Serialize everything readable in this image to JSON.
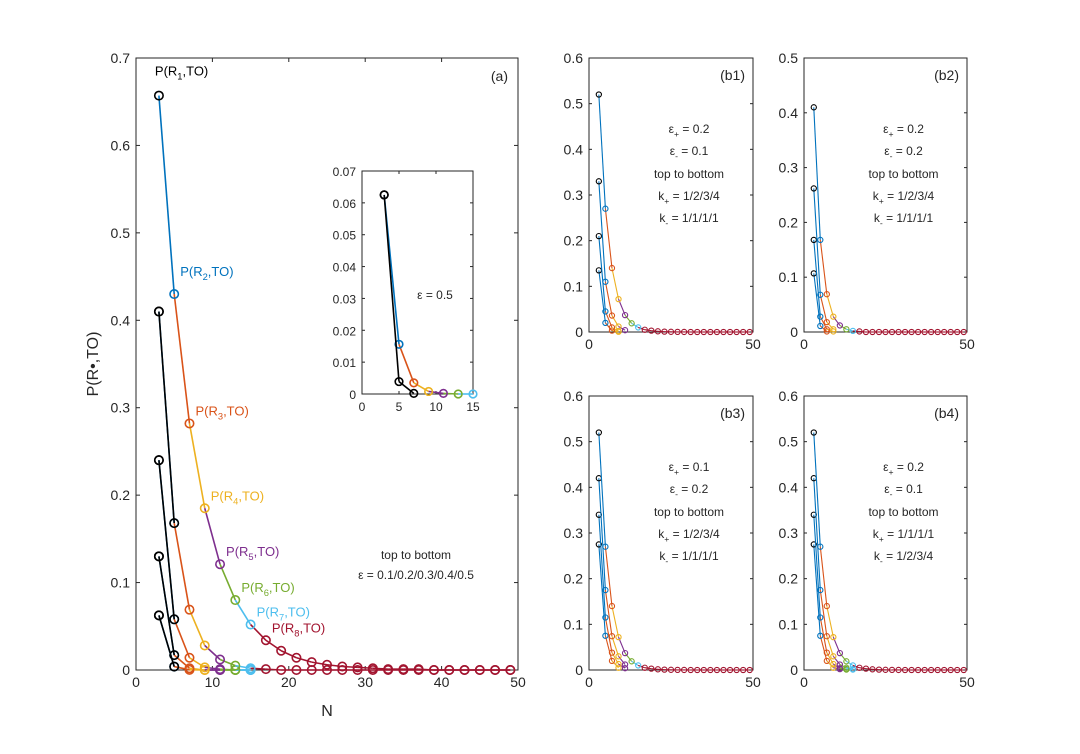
{
  "chart_data": [
    {
      "id": "a",
      "type": "line",
      "panel_label": "(a)",
      "xlabel": "N",
      "ylabel": "P(R•,TO)",
      "xlim": [
        0,
        50
      ],
      "ylim": [
        0,
        0.7
      ],
      "xticks": [
        0,
        10,
        20,
        30,
        40,
        50
      ],
      "yticks": [
        0,
        0.1,
        0.2,
        0.3,
        0.4,
        0.5,
        0.6,
        0.7
      ],
      "xtick_labels": [
        "0",
        "10",
        "20",
        "30",
        "40",
        "50"
      ],
      "ytick_labels": [
        "0",
        "0.1",
        "0.2",
        "0.3",
        "0.4",
        "0.5",
        "0.6",
        "0.7"
      ],
      "legend_lines": [
        "top to bottom",
        "ε = 0.1/0.2/0.3/0.4/0.5"
      ],
      "colors": [
        "#000000",
        "#0072BD",
        "#D95319",
        "#EDB120",
        "#7E2F8E",
        "#77AC30",
        "#4DBEEE",
        "#A2142F"
      ],
      "series": [
        {
          "name": "ε = 0.1",
          "x": [
            3,
            5,
            7,
            9,
            11,
            13,
            15,
            17,
            19,
            21,
            23,
            25,
            27,
            29,
            31,
            33,
            35,
            37,
            39,
            41,
            43,
            45,
            47,
            49
          ],
          "y": [
            0.657,
            0.43,
            0.282,
            0.185,
            0.121,
            0.08,
            0.052,
            0.034,
            0.022,
            0.014,
            0.009,
            0.006,
            0.004,
            0.003,
            0.002,
            0.001,
            0.001,
            0.001,
            0.0,
            0.0,
            0.0,
            0.0,
            0.0,
            0.0
          ]
        },
        {
          "name": "ε = 0.2",
          "x": [
            3,
            5,
            7,
            9,
            11,
            13,
            15,
            17,
            19,
            21,
            23,
            25,
            27,
            29,
            31,
            33,
            35,
            37,
            39,
            41,
            43,
            45,
            47,
            49
          ],
          "y": [
            0.41,
            0.168,
            0.069,
            0.028,
            0.012,
            0.005,
            0.002,
            0.001,
            0.0,
            0.0,
            0.0,
            0.0,
            0.0,
            0.0,
            0.0,
            0.0,
            0.0,
            0.0,
            0.0,
            0.0,
            0.0,
            0.0,
            0.0,
            0.0
          ]
        },
        {
          "name": "ε = 0.3",
          "x": [
            3,
            5,
            7,
            9,
            11,
            13,
            15
          ],
          "y": [
            0.24,
            0.058,
            0.014,
            0.003,
            0.001,
            0.0,
            0.0
          ]
        },
        {
          "name": "ε = 0.4",
          "x": [
            3,
            5,
            7,
            9,
            11,
            13,
            15
          ],
          "y": [
            0.13,
            0.017,
            0.002,
            0.0,
            0.0,
            0.0,
            0.0
          ]
        },
        {
          "name": "ε = 0.5",
          "x": [
            3,
            5,
            7,
            9,
            11,
            13,
            15
          ],
          "y": [
            0.0625,
            0.0039,
            0.0002,
            0.0,
            0.0,
            0.0,
            0.0
          ]
        }
      ],
      "point_labels": [
        {
          "main": "P(R",
          "sub": "1",
          "tail": ",TO)",
          "color_index": 0
        },
        {
          "main": "P(R",
          "sub": "2",
          "tail": ",TO)",
          "color_index": 1
        },
        {
          "main": "P(R",
          "sub": "3",
          "tail": ",TO)",
          "color_index": 2
        },
        {
          "main": "P(R",
          "sub": "4",
          "tail": ",TO)",
          "color_index": 3
        },
        {
          "main": "P(R",
          "sub": "5",
          "tail": ",TO)",
          "color_index": 4
        },
        {
          "main": "P(R",
          "sub": "6",
          "tail": ",TO)",
          "color_index": 5
        },
        {
          "main": "P(R",
          "sub": "7",
          "tail": ",TO)",
          "color_index": 6
        },
        {
          "main": "P(R",
          "sub": "8",
          "tail": ",TO)",
          "color_index": 7
        }
      ]
    },
    {
      "id": "inset",
      "type": "line",
      "xlim": [
        0,
        15
      ],
      "ylim": [
        0,
        0.07
      ],
      "xticks": [
        0,
        5,
        10,
        15
      ],
      "yticks": [
        0,
        0.01,
        0.02,
        0.03,
        0.04,
        0.05,
        0.06,
        0.07
      ],
      "xtick_labels": [
        "0",
        "5",
        "10",
        "15"
      ],
      "ytick_labels": [
        "0",
        "0.01",
        "0.02",
        "0.03",
        "0.04",
        "0.05",
        "0.06",
        "0.07"
      ],
      "annotation": "ε = 0.5",
      "series": [
        {
          "name": "colored",
          "x": [
            3,
            5,
            7,
            9,
            11,
            13,
            15
          ],
          "y": [
            0.0625,
            0.0156,
            0.0035,
            0.0008,
            0.0002,
            0.0,
            0.0
          ]
        },
        {
          "name": "black",
          "x": [
            3,
            5,
            7,
            9,
            11,
            13,
            15
          ],
          "y": [
            0.0625,
            0.0039,
            0.0002,
            0.0,
            0.0,
            0.0,
            0.0
          ]
        }
      ]
    },
    {
      "id": "b1",
      "type": "line",
      "panel_label": "(b1)",
      "xlim": [
        0,
        50
      ],
      "ylim": [
        0,
        0.6
      ],
      "xticks": [
        0,
        50
      ],
      "yticks": [
        0,
        0.1,
        0.2,
        0.3,
        0.4,
        0.5,
        0.6
      ],
      "xtick_labels": [
        "0",
        "50"
      ],
      "ytick_labels": [
        "0",
        "0.1",
        "0.2",
        "0.3",
        "0.4",
        "0.5",
        "0.6"
      ],
      "annotation_lines": [
        {
          "main": "ε",
          "sub": "+",
          "tail": " = 0.2"
        },
        {
          "main": "ε",
          "sub": "-",
          "tail": " = 0.1"
        },
        {
          "main": "top to bottom",
          "sub": "",
          "tail": ""
        },
        {
          "main": "k",
          "sub": "+",
          "tail": " = 1/2/3/4"
        },
        {
          "main": "k",
          "sub": "-",
          "tail": " = 1/1/1/1"
        }
      ],
      "series": [
        {
          "name": "k+=1",
          "x": [
            3,
            5,
            7,
            9,
            11,
            13,
            15,
            17,
            19,
            21,
            23,
            25,
            27,
            29,
            31,
            33,
            35,
            37,
            39,
            41,
            43,
            45,
            47,
            49
          ],
          "y": [
            0.52,
            0.27,
            0.14,
            0.072,
            0.037,
            0.019,
            0.01,
            0.005,
            0.003,
            0.0015,
            0.0008,
            0.0004,
            0.0002,
            0.0001,
            0,
            0,
            0,
            0,
            0,
            0,
            0,
            0,
            0,
            0
          ]
        },
        {
          "name": "k+=2",
          "x": [
            3,
            5,
            7,
            9,
            11
          ],
          "y": [
            0.33,
            0.11,
            0.036,
            0.012,
            0.004
          ]
        },
        {
          "name": "k+=3",
          "x": [
            3,
            5,
            7,
            9
          ],
          "y": [
            0.21,
            0.045,
            0.01,
            0.002
          ]
        },
        {
          "name": "k+=4",
          "x": [
            3,
            5,
            7,
            9
          ],
          "y": [
            0.135,
            0.02,
            0.003,
            0.0005
          ]
        }
      ]
    },
    {
      "id": "b2",
      "type": "line",
      "panel_label": "(b2)",
      "xlim": [
        0,
        50
      ],
      "ylim": [
        0,
        0.5
      ],
      "xticks": [
        0,
        50
      ],
      "yticks": [
        0,
        0.1,
        0.2,
        0.3,
        0.4,
        0.5
      ],
      "xtick_labels": [
        "0",
        "50"
      ],
      "ytick_labels": [
        "0",
        "0.1",
        "0.2",
        "0.3",
        "0.4",
        "0.5"
      ],
      "annotation_lines": [
        {
          "main": "ε",
          "sub": "+",
          "tail": " = 0.2"
        },
        {
          "main": "ε",
          "sub": "-",
          "tail": " = 0.2"
        },
        {
          "main": "top to bottom",
          "sub": "",
          "tail": ""
        },
        {
          "main": "k",
          "sub": "+",
          "tail": " = 1/2/3/4"
        },
        {
          "main": "k",
          "sub": "-",
          "tail": " = 1/1/1/1"
        }
      ],
      "series": [
        {
          "name": "k+=1",
          "x": [
            3,
            5,
            7,
            9,
            11,
            13,
            15,
            17,
            19,
            21,
            23,
            25,
            27,
            29,
            31,
            33,
            35,
            37,
            39,
            41,
            43,
            45,
            47,
            49
          ],
          "y": [
            0.41,
            0.168,
            0.069,
            0.028,
            0.012,
            0.005,
            0.002,
            0.001,
            0,
            0,
            0,
            0,
            0,
            0,
            0,
            0,
            0,
            0,
            0,
            0,
            0,
            0,
            0,
            0
          ]
        },
        {
          "name": "k+=2",
          "x": [
            3,
            5,
            7,
            9
          ],
          "y": [
            0.262,
            0.068,
            0.018,
            0.005
          ]
        },
        {
          "name": "k+=3",
          "x": [
            3,
            5,
            7,
            9
          ],
          "y": [
            0.168,
            0.028,
            0.005,
            0.001
          ]
        },
        {
          "name": "k+=4",
          "x": [
            3,
            5,
            7
          ],
          "y": [
            0.107,
            0.011,
            0.001
          ]
        }
      ]
    },
    {
      "id": "b3",
      "type": "line",
      "panel_label": "(b3)",
      "xlim": [
        0,
        50
      ],
      "ylim": [
        0,
        0.6
      ],
      "xticks": [
        0,
        50
      ],
      "yticks": [
        0,
        0.1,
        0.2,
        0.3,
        0.4,
        0.5,
        0.6
      ],
      "xtick_labels": [
        "0",
        "50"
      ],
      "ytick_labels": [
        "0",
        "0.1",
        "0.2",
        "0.3",
        "0.4",
        "0.5",
        "0.6"
      ],
      "annotation_lines": [
        {
          "main": "ε",
          "sub": "+",
          "tail": " = 0.1"
        },
        {
          "main": "ε",
          "sub": "-",
          "tail": " = 0.2"
        },
        {
          "main": "top to bottom",
          "sub": "",
          "tail": ""
        },
        {
          "main": "k",
          "sub": "+",
          "tail": " = 1/2/3/4"
        },
        {
          "main": "k",
          "sub": "-",
          "tail": " = 1/1/1/1"
        }
      ],
      "series": [
        {
          "name": "k+=1",
          "x": [
            3,
            5,
            7,
            9,
            11,
            13,
            15,
            17,
            19,
            21,
            23,
            25,
            27,
            29,
            31,
            33,
            35,
            37,
            39,
            41,
            43,
            45,
            47,
            49
          ],
          "y": [
            0.52,
            0.27,
            0.14,
            0.072,
            0.037,
            0.019,
            0.01,
            0.005,
            0.003,
            0.0015,
            0.0008,
            0.0004,
            0.0002,
            0.0001,
            0,
            0,
            0,
            0,
            0,
            0,
            0,
            0,
            0,
            0
          ]
        },
        {
          "name": "k+=2",
          "x": [
            3,
            5,
            7,
            9,
            11
          ],
          "y": [
            0.42,
            0.175,
            0.074,
            0.03,
            0.012
          ]
        },
        {
          "name": "k+=3",
          "x": [
            3,
            5,
            7,
            9,
            11
          ],
          "y": [
            0.34,
            0.115,
            0.038,
            0.013,
            0.004
          ]
        },
        {
          "name": "k+=4",
          "x": [
            3,
            5,
            7,
            9
          ],
          "y": [
            0.275,
            0.075,
            0.02,
            0.005
          ]
        }
      ]
    },
    {
      "id": "b4",
      "type": "line",
      "panel_label": "(b4)",
      "xlim": [
        0,
        50
      ],
      "ylim": [
        0,
        0.6
      ],
      "xticks": [
        0,
        50
      ],
      "yticks": [
        0,
        0.1,
        0.2,
        0.3,
        0.4,
        0.5,
        0.6
      ],
      "xtick_labels": [
        "0",
        "50"
      ],
      "ytick_labels": [
        "0",
        "0.1",
        "0.2",
        "0.3",
        "0.4",
        "0.5",
        "0.6"
      ],
      "annotation_lines": [
        {
          "main": "ε",
          "sub": "+",
          "tail": " = 0.2"
        },
        {
          "main": "ε",
          "sub": "-",
          "tail": " = 0.1"
        },
        {
          "main": "top to bottom",
          "sub": "",
          "tail": ""
        },
        {
          "main": "k",
          "sub": "+",
          "tail": " = 1/1/1/1"
        },
        {
          "main": "k",
          "sub": "-",
          "tail": " = 1/2/3/4"
        }
      ],
      "series": [
        {
          "name": "k-=1",
          "x": [
            3,
            5,
            7,
            9,
            11,
            13,
            15,
            17,
            19,
            21,
            23,
            25,
            27,
            29,
            31,
            33,
            35,
            37,
            39,
            41,
            43,
            45,
            47,
            49
          ],
          "y": [
            0.52,
            0.27,
            0.14,
            0.072,
            0.037,
            0.019,
            0.01,
            0.005,
            0.003,
            0.0015,
            0.0008,
            0.0004,
            0.0002,
            0.0001,
            0,
            0,
            0,
            0,
            0,
            0,
            0,
            0,
            0,
            0
          ]
        },
        {
          "name": "k-=2",
          "x": [
            3,
            5,
            7,
            9,
            11,
            13,
            15
          ],
          "y": [
            0.42,
            0.175,
            0.074,
            0.03,
            0.012,
            0.005,
            0.002
          ]
        },
        {
          "name": "k-=3",
          "x": [
            3,
            5,
            7,
            9,
            11,
            13,
            15
          ],
          "y": [
            0.34,
            0.115,
            0.038,
            0.013,
            0.004,
            0.002,
            0.001
          ]
        },
        {
          "name": "k-=4",
          "x": [
            3,
            5,
            7,
            9,
            11,
            13
          ],
          "y": [
            0.275,
            0.075,
            0.02,
            0.005,
            0.002,
            0.001
          ]
        }
      ]
    }
  ]
}
